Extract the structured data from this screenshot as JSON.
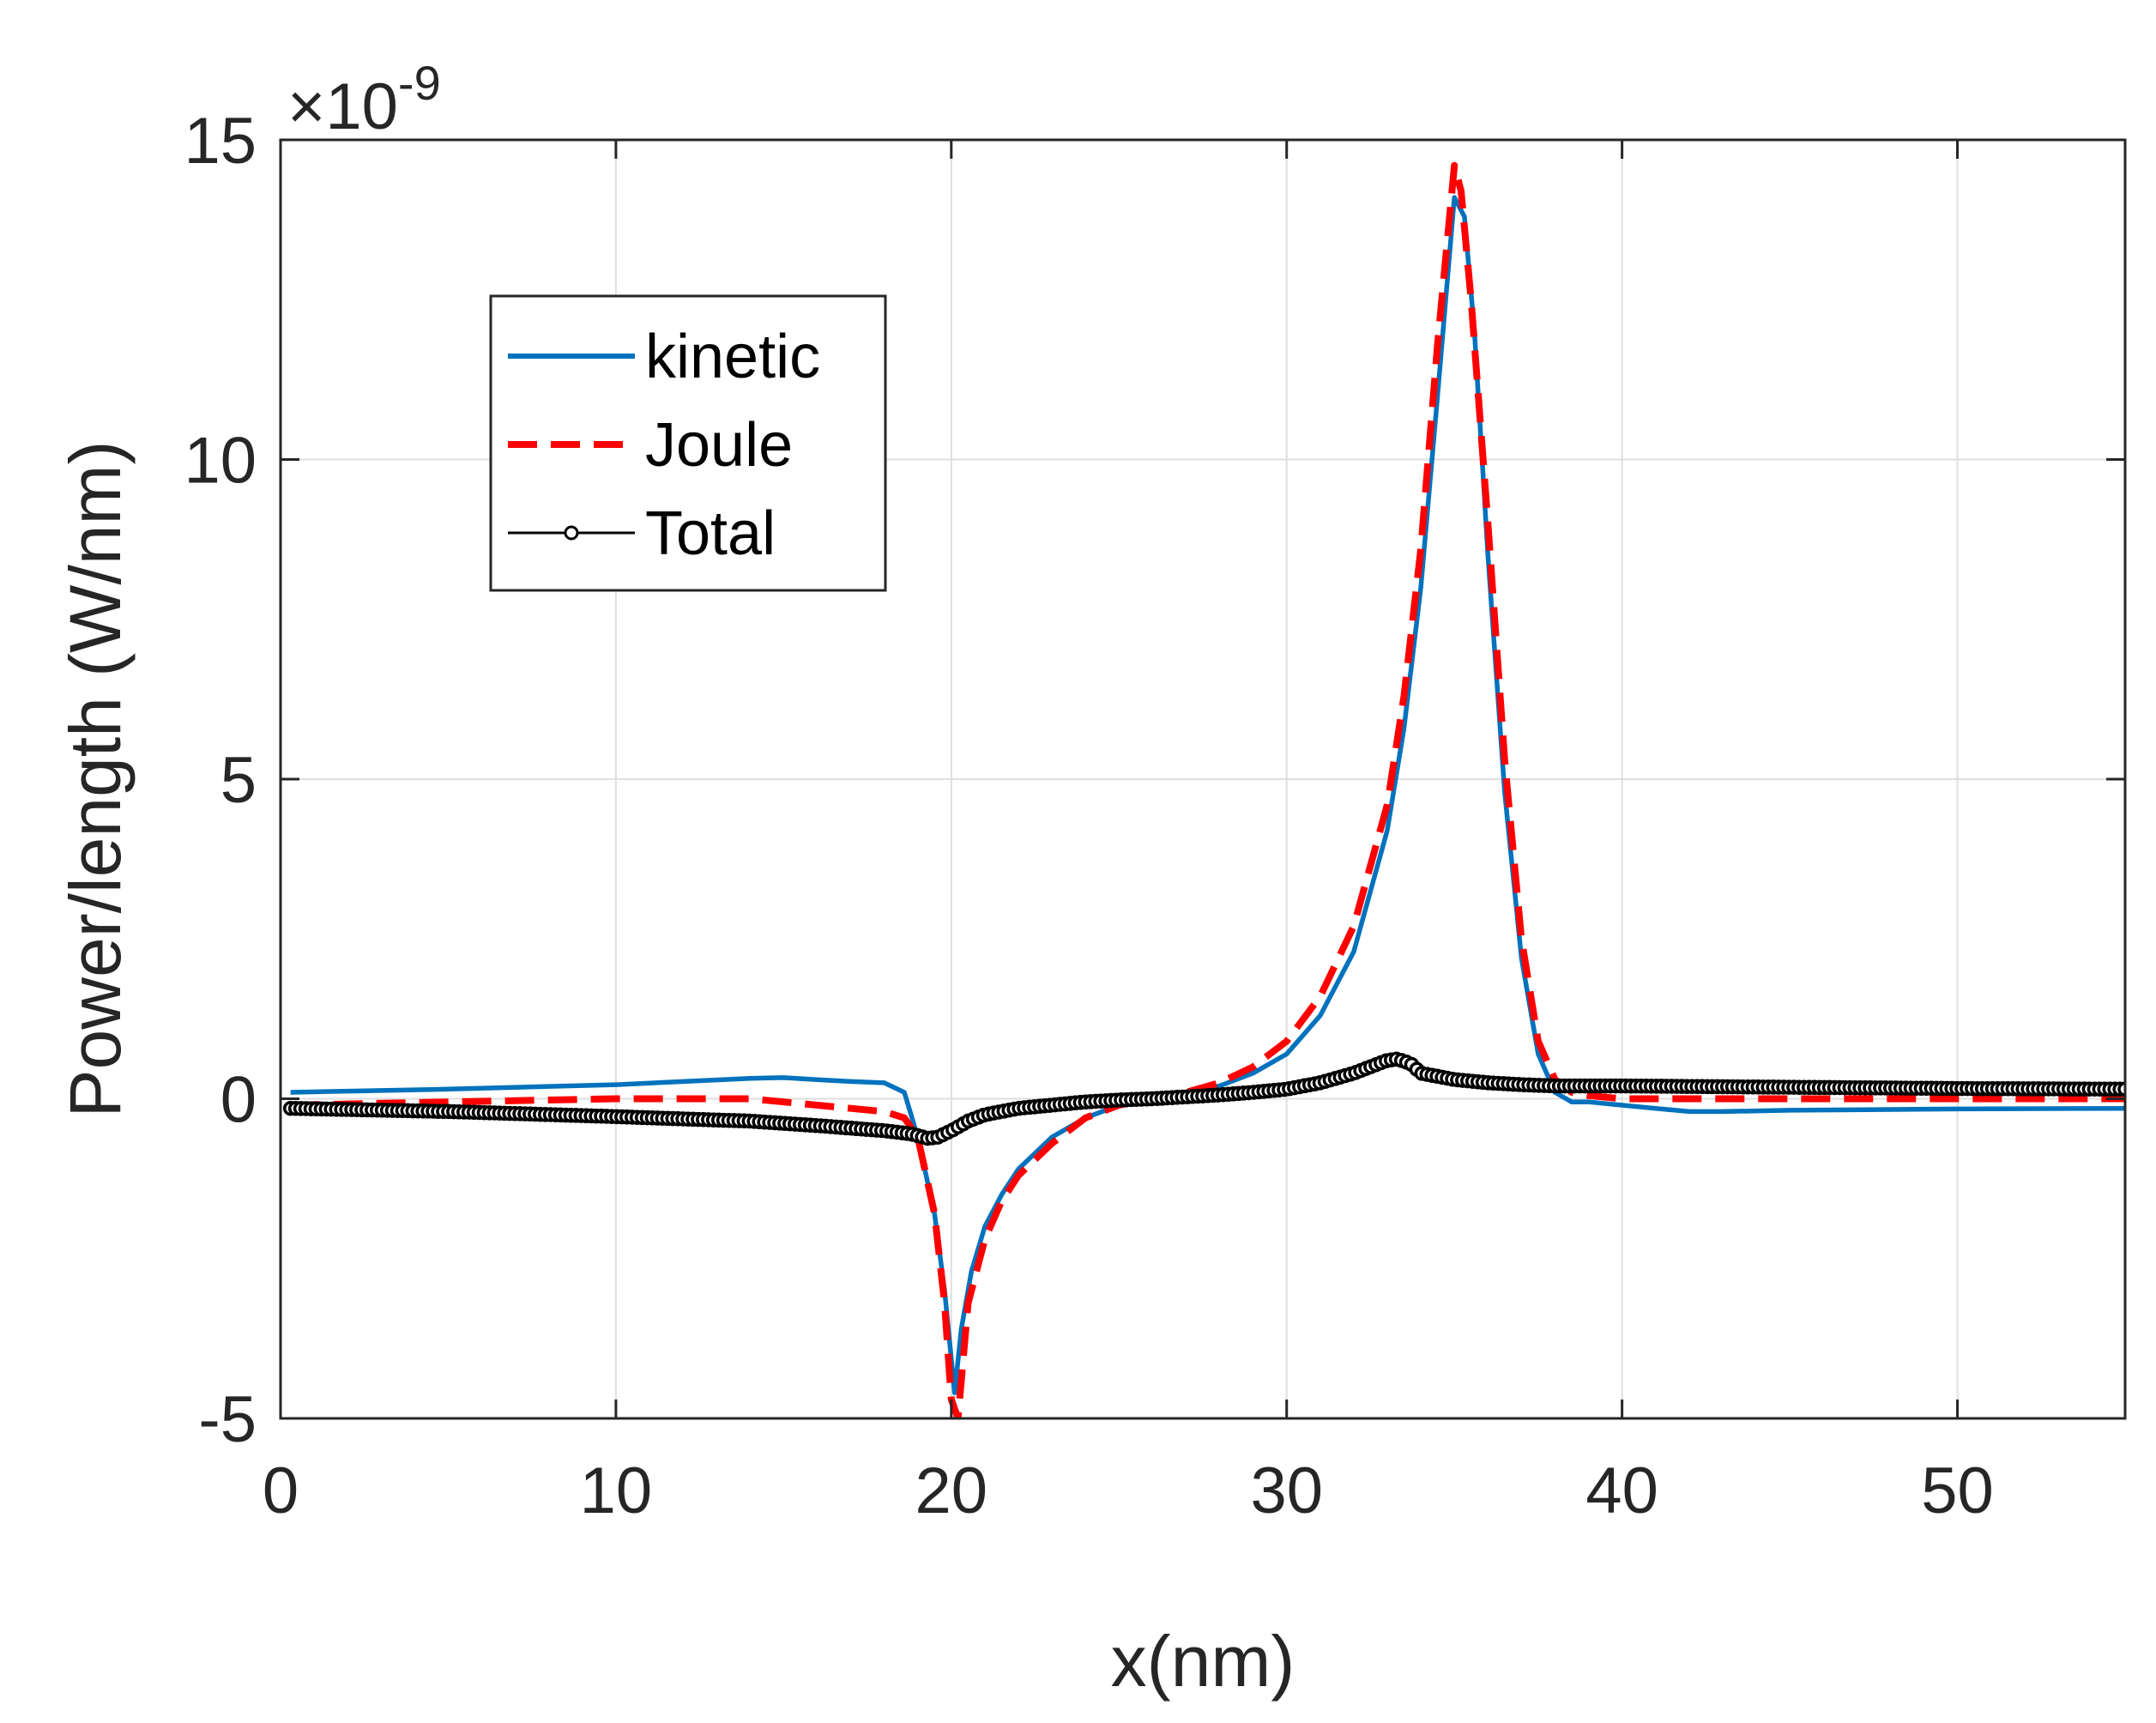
{
  "chart_data": {
    "type": "line",
    "xlabel": "x(nm)",
    "ylabel": "Power/length (W/nm)",
    "y_multiplier": {
      "base": "×10",
      "exponent": "-9"
    },
    "xlim": [
      0,
      55
    ],
    "ylim": [
      -5,
      15
    ],
    "x_ticks": [
      0,
      10,
      20,
      30,
      40,
      50
    ],
    "x_tick_labels": [
      "0",
      "10",
      "20",
      "30",
      "40",
      "50"
    ],
    "y_ticks": [
      -5,
      0,
      5,
      10,
      15
    ],
    "y_tick_labels": [
      "-5",
      "0",
      "5",
      "10",
      "15"
    ],
    "grid": true,
    "legend_position": "top-left",
    "colors": {
      "kinetic": "#0072BD",
      "joule": "#FF0000",
      "total": "#000000",
      "axis": "#262626",
      "grid": "#DFDFDF"
    },
    "series": [
      {
        "name": "kinetic",
        "style": "solid",
        "x": [
          0.3,
          5,
          10,
          14,
          15,
          16,
          17,
          18,
          18.6,
          19.0,
          19.5,
          19.8,
          20.1,
          20.3,
          20.6,
          21,
          21.5,
          22,
          23,
          24,
          25,
          26,
          27,
          28,
          29,
          30,
          31,
          32,
          33,
          33.5,
          34,
          34.5,
          35.0,
          35.3,
          35.6,
          36,
          36.5,
          37,
          37.5,
          38,
          38.5,
          39,
          40,
          41,
          42,
          43,
          45,
          50,
          55
        ],
        "y": [
          0.1,
          0.15,
          0.22,
          0.32,
          0.33,
          0.3,
          0.27,
          0.25,
          0.1,
          -0.6,
          -1.8,
          -3.0,
          -4.6,
          -3.6,
          -2.7,
          -2.0,
          -1.5,
          -1.1,
          -0.6,
          -0.3,
          -0.1,
          0.0,
          0.1,
          0.2,
          0.4,
          0.7,
          1.3,
          2.3,
          4.2,
          5.8,
          8.0,
          11.0,
          14.1,
          13.8,
          12.0,
          8.5,
          4.8,
          2.2,
          0.7,
          0.1,
          -0.05,
          -0.05,
          -0.1,
          -0.15,
          -0.2,
          -0.2,
          -0.18,
          -0.16,
          -0.15
        ]
      },
      {
        "name": "Joule",
        "style": "dashed",
        "x": [
          0.3,
          5,
          10,
          14,
          15,
          16,
          17,
          18,
          18.6,
          19.0,
          19.5,
          19.8,
          20.0,
          20.2,
          20.5,
          21,
          21.5,
          22,
          23,
          24,
          25,
          26,
          27,
          28,
          29,
          30,
          31,
          32,
          33,
          33.5,
          34,
          34.5,
          35.0,
          35.2,
          35.5,
          36,
          36.5,
          37,
          37.5,
          38,
          38.5,
          39,
          40,
          42,
          45,
          50,
          55
        ],
        "y": [
          -0.1,
          -0.05,
          0.0,
          0.0,
          -0.05,
          -0.1,
          -0.15,
          -0.2,
          -0.3,
          -0.6,
          -1.8,
          -3.2,
          -4.7,
          -5.0,
          -3.2,
          -2.2,
          -1.6,
          -1.2,
          -0.7,
          -0.3,
          -0.1,
          0.0,
          0.1,
          0.25,
          0.5,
          0.9,
          1.6,
          2.7,
          4.6,
          6.3,
          8.6,
          11.8,
          14.6,
          14.2,
          12.5,
          9.0,
          5.3,
          2.5,
          0.9,
          0.3,
          0.1,
          0.05,
          0.0,
          0.0,
          0.0,
          0.0,
          0.0
        ]
      },
      {
        "name": "Total",
        "style": "solid-circles",
        "x": [
          0.3,
          5,
          10,
          14,
          16,
          18,
          18.8,
          19.3,
          19.6,
          20.0,
          20.5,
          21,
          22,
          23,
          24,
          25,
          26,
          27,
          28,
          29,
          30,
          31,
          32,
          32.5,
          33,
          33.3,
          33.7,
          34,
          34.5,
          35,
          36,
          37,
          38,
          39,
          40,
          45,
          50,
          55
        ],
        "y": [
          -0.15,
          -0.2,
          -0.28,
          -0.35,
          -0.42,
          -0.5,
          -0.55,
          -0.62,
          -0.6,
          -0.5,
          -0.35,
          -0.25,
          -0.15,
          -0.1,
          -0.05,
          -0.02,
          0.0,
          0.03,
          0.06,
          0.1,
          0.15,
          0.25,
          0.4,
          0.5,
          0.6,
          0.62,
          0.55,
          0.4,
          0.35,
          0.3,
          0.25,
          0.22,
          0.2,
          0.2,
          0.2,
          0.18,
          0.16,
          0.15
        ]
      }
    ]
  }
}
